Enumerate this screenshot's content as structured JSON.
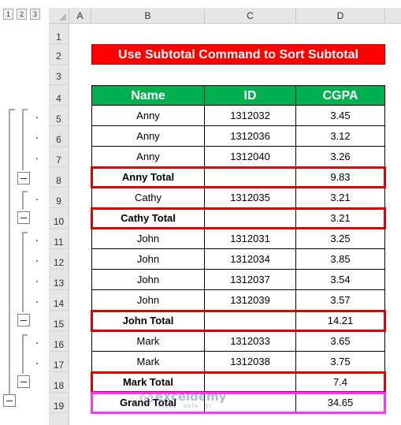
{
  "outline": {
    "levels": [
      "1",
      "2",
      "3"
    ]
  },
  "columns": [
    "A",
    "B",
    "C",
    "D"
  ],
  "rows": [
    "1",
    "2",
    "3",
    "4",
    "5",
    "6",
    "7",
    "8",
    "9",
    "10",
    "11",
    "12",
    "13",
    "14",
    "15",
    "16",
    "17",
    "18",
    "19"
  ],
  "title": "Use Subtotal Command to Sort Subtotal",
  "table": {
    "headers": [
      "Name",
      "ID",
      "CGPA"
    ],
    "rows": [
      {
        "name": "Anny",
        "id": "1312032",
        "cgpa": "3.45"
      },
      {
        "name": "Anny",
        "id": "1312036",
        "cgpa": "3.12"
      },
      {
        "name": "Anny",
        "id": "1312040",
        "cgpa": "3.26"
      },
      {
        "name": "Anny Total",
        "id": "",
        "cgpa": "9.83"
      },
      {
        "name": "Cathy",
        "id": "1312035",
        "cgpa": "3.21"
      },
      {
        "name": "Cathy Total",
        "id": "",
        "cgpa": "3.21"
      },
      {
        "name": "John",
        "id": "1312031",
        "cgpa": "3.25"
      },
      {
        "name": "John",
        "id": "1312034",
        "cgpa": "3.85"
      },
      {
        "name": "John",
        "id": "1312037",
        "cgpa": "3.54"
      },
      {
        "name": "John",
        "id": "1312039",
        "cgpa": "3.57"
      },
      {
        "name": "John Total",
        "id": "",
        "cgpa": "14.21"
      },
      {
        "name": "Mark",
        "id": "1312033",
        "cgpa": "3.65"
      },
      {
        "name": "Mark",
        "id": "1312038",
        "cgpa": "3.75"
      },
      {
        "name": "Mark Total",
        "id": "",
        "cgpa": "7.4"
      },
      {
        "name": "Grand Total",
        "id": "",
        "cgpa": "34.65"
      }
    ]
  },
  "watermark": {
    "brand": "exceldemy",
    "tagline": "EXCEL · DATA · BI"
  },
  "colors": {
    "header_green": "#00b050",
    "title_red": "#ff0000",
    "highlight_red": "#e00000",
    "highlight_magenta": "#ff33ff"
  }
}
